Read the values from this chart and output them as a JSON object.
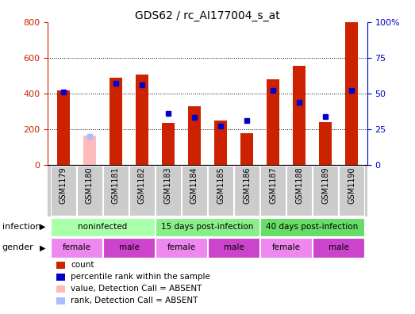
{
  "title": "GDS62 / rc_AI177004_s_at",
  "samples": [
    "GSM1179",
    "GSM1180",
    "GSM1181",
    "GSM1182",
    "GSM1183",
    "GSM1184",
    "GSM1185",
    "GSM1186",
    "GSM1187",
    "GSM1188",
    "GSM1189",
    "GSM1190"
  ],
  "count_values": [
    415,
    0,
    490,
    505,
    235,
    330,
    250,
    175,
    480,
    555,
    240,
    800
  ],
  "count_absent": [
    0,
    165,
    0,
    0,
    0,
    0,
    0,
    0,
    0,
    0,
    0,
    0
  ],
  "rank_values": [
    51,
    0,
    57,
    56,
    36,
    33,
    27,
    31,
    52,
    44,
    34,
    52
  ],
  "rank_absent": [
    0,
    20,
    0,
    0,
    0,
    0,
    0,
    0,
    0,
    0,
    0,
    0
  ],
  "count_color": "#cc2200",
  "count_absent_color": "#ffbbbb",
  "rank_color": "#0000cc",
  "rank_absent_color": "#aabbff",
  "ylim_left": [
    0,
    800
  ],
  "ylim_right": [
    0,
    100
  ],
  "yticks_left": [
    0,
    200,
    400,
    600,
    800
  ],
  "yticks_right": [
    0,
    25,
    50,
    75,
    100
  ],
  "ytick_labels_right": [
    "0",
    "25",
    "50",
    "75",
    "100%"
  ],
  "infection_groups": [
    {
      "label": "noninfected",
      "start": 0,
      "end": 3,
      "color": "#aaffaa"
    },
    {
      "label": "15 days post-infection",
      "start": 4,
      "end": 7,
      "color": "#88ee88"
    },
    {
      "label": "40 days post-infection",
      "start": 8,
      "end": 11,
      "color": "#66dd66"
    }
  ],
  "gender_groups": [
    {
      "label": "female",
      "start": 0,
      "end": 1,
      "color": "#ee88ee"
    },
    {
      "label": "male",
      "start": 2,
      "end": 3,
      "color": "#cc44cc"
    },
    {
      "label": "female",
      "start": 4,
      "end": 5,
      "color": "#ee88ee"
    },
    {
      "label": "male",
      "start": 6,
      "end": 7,
      "color": "#cc44cc"
    },
    {
      "label": "female",
      "start": 8,
      "end": 9,
      "color": "#ee88ee"
    },
    {
      "label": "male",
      "start": 10,
      "end": 11,
      "color": "#cc44cc"
    }
  ],
  "legend_items": [
    {
      "label": "count",
      "color": "#cc2200"
    },
    {
      "label": "percentile rank within the sample",
      "color": "#0000cc"
    },
    {
      "label": "value, Detection Call = ABSENT",
      "color": "#ffbbbb"
    },
    {
      "label": "rank, Detection Call = ABSENT",
      "color": "#aabbff"
    }
  ],
  "bar_width": 0.5,
  "marker_size": 5
}
